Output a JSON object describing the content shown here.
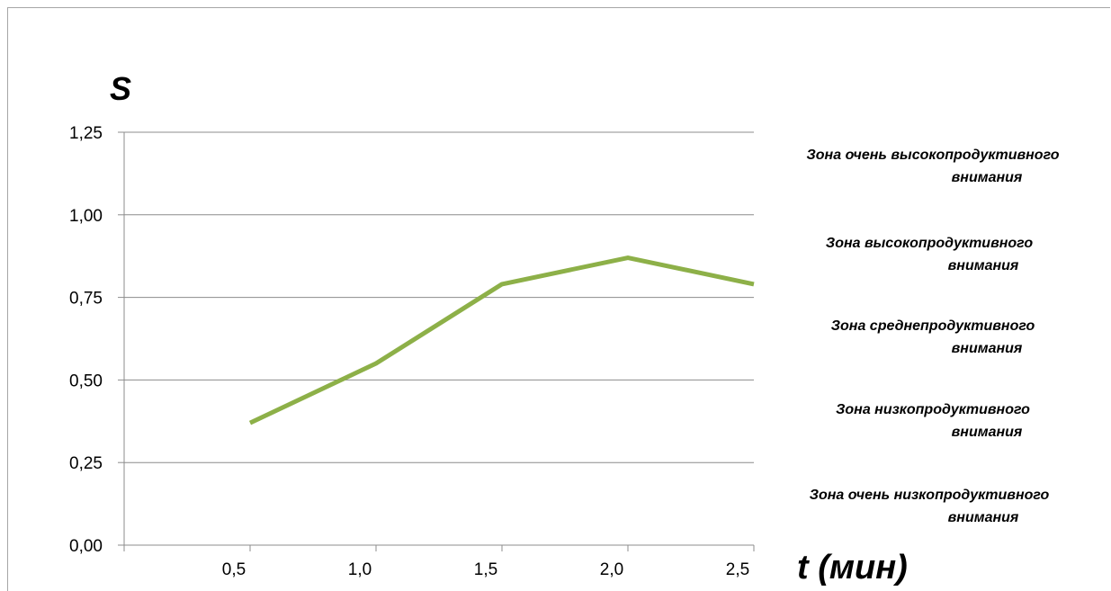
{
  "chart_data": {
    "type": "line",
    "x": [
      "0,5",
      "1,0",
      "1,5",
      "2,0",
      "2,5"
    ],
    "series": [
      {
        "values": [
          0.37,
          0.55,
          0.79,
          0.87,
          0.79
        ],
        "color": "#8db048"
      }
    ],
    "yticks": [
      "0,00",
      "0,25",
      "0,50",
      "0,75",
      "1,00",
      "1,25"
    ],
    "ylim": [
      0,
      1.25
    ],
    "ylabel": "S",
    "xlabel": "t (мин)",
    "grid": true,
    "zones": [
      {
        "line1": "Зона очень высокопродуктивного",
        "line2": "внимания"
      },
      {
        "line1": "Зона высокопродуктивного",
        "line2": "внимания"
      },
      {
        "line1": "Зона среднепродуктивного",
        "line2": "внимания"
      },
      {
        "line1": "Зона низкопродуктивного",
        "line2": "внимания"
      },
      {
        "line1": "Зона очень низкопродуктивного",
        "line2": "внимания"
      }
    ]
  }
}
